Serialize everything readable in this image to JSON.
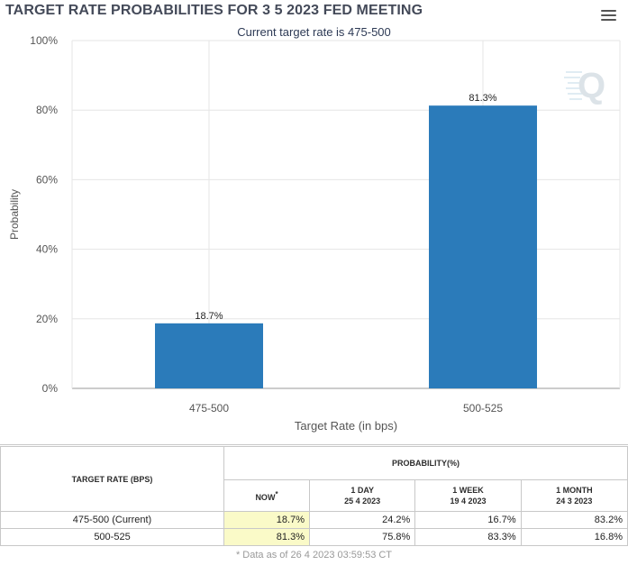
{
  "header": {
    "title": "TARGET RATE PROBABILITIES FOR 3 5 2023 FED MEETING",
    "subtitle": "Current target rate is 475-500"
  },
  "chart_data": {
    "type": "bar",
    "categories": [
      "475-500",
      "500-525"
    ],
    "values": [
      18.7,
      81.3
    ],
    "data_labels": [
      "18.7%",
      "81.3%"
    ],
    "xlabel": "Target Rate (in bps)",
    "ylabel": "Probability",
    "ylim": [
      0,
      100
    ],
    "yticks": [
      "0%",
      "20%",
      "40%",
      "60%",
      "80%",
      "100%"
    ],
    "grid": true,
    "bar_color": "#2b7bba"
  },
  "table": {
    "rate_header": "TARGET RATE (BPS)",
    "prob_header": "PROBABILITY(%)",
    "columns": [
      {
        "label": "NOW",
        "marker": "*",
        "date": ""
      },
      {
        "label": "1 DAY",
        "date": "25 4 2023"
      },
      {
        "label": "1 WEEK",
        "date": "19 4 2023"
      },
      {
        "label": "1 MONTH",
        "date": "24 3 2023"
      }
    ],
    "rows": [
      {
        "rate": "475-500 (Current)",
        "values": [
          "18.7%",
          "24.2%",
          "16.7%",
          "83.2%"
        ]
      },
      {
        "rate": "500-525",
        "values": [
          "81.3%",
          "75.8%",
          "83.3%",
          "16.8%"
        ]
      }
    ]
  },
  "footnote": "* Data as of 26 4 2023 03:59:53 CT",
  "colors": {
    "now_highlight": "#fafac8",
    "title": "#444a59"
  }
}
